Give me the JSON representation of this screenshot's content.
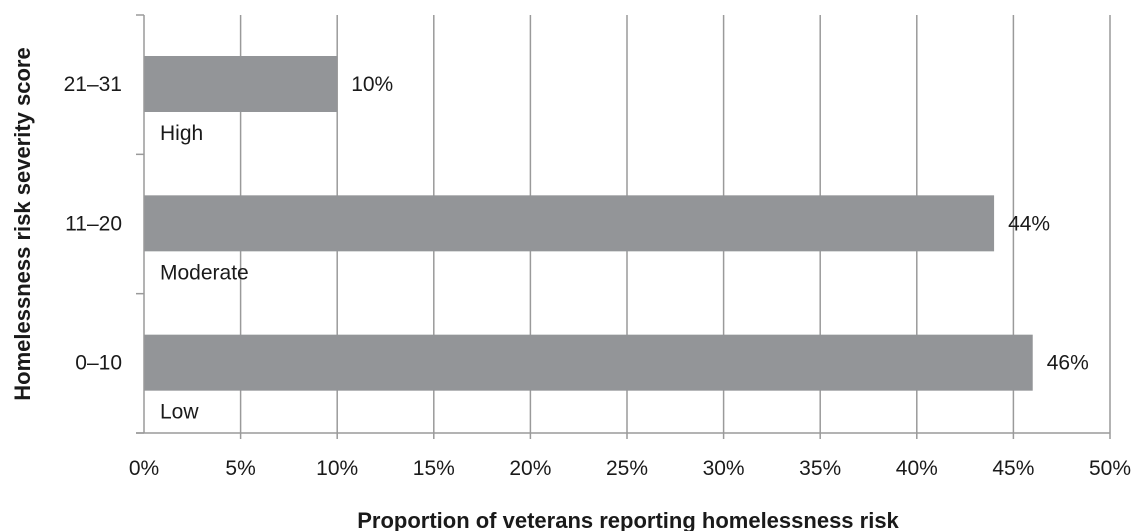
{
  "chart_data": {
    "type": "bar",
    "orientation": "horizontal",
    "categories": [
      "0–10",
      "11–20",
      "21–31"
    ],
    "category_levels": [
      "Low",
      "Moderate",
      "High"
    ],
    "values": [
      46,
      44,
      10
    ],
    "data_labels": [
      "46%",
      "44%",
      "10%"
    ],
    "xlabel": "Proportion of veterans reporting homelessness risk",
    "ylabel": "Homelessness risk severity score",
    "xlim": [
      0,
      50
    ],
    "x_ticks": [
      0,
      5,
      10,
      15,
      20,
      25,
      30,
      35,
      40,
      45,
      50
    ],
    "x_tick_labels": [
      "0%",
      "5%",
      "10%",
      "15%",
      "20%",
      "25%",
      "30%",
      "35%",
      "40%",
      "45%",
      "50%"
    ],
    "grid": "vertical",
    "bar_color": "#939598",
    "grid_color": "#9a9a9a",
    "text_color": "#1a1a1a"
  }
}
